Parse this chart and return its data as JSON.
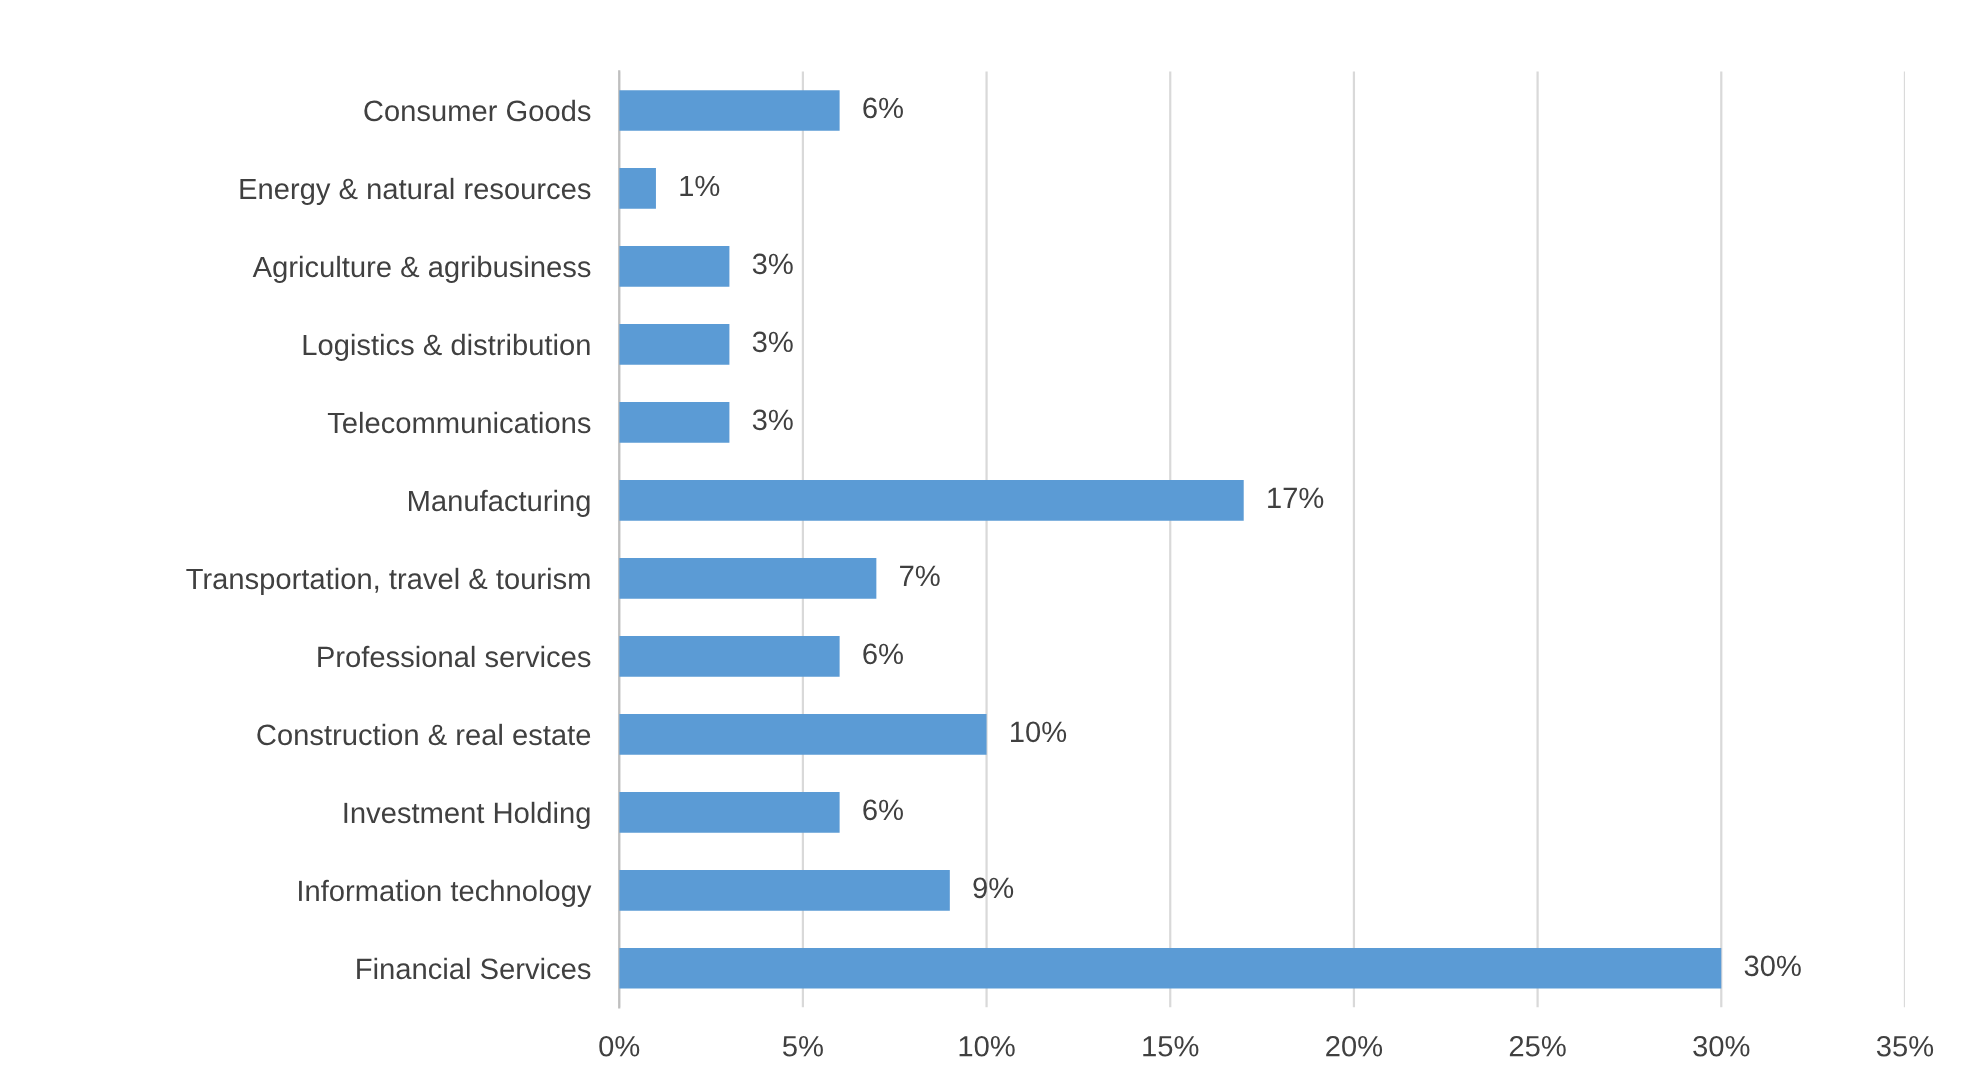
{
  "chart_data": {
    "type": "bar",
    "orientation": "horizontal",
    "categories": [
      "Consumer Goods",
      "Energy & natural resources",
      "Agriculture & agribusiness",
      "Logistics & distribution",
      "Telecommunications",
      "Manufacturing",
      "Transportation, travel & tourism",
      "Professional services",
      "Construction & real estate",
      "Investment Holding",
      "Information technology",
      "Financial Services"
    ],
    "values": [
      6,
      1,
      3,
      3,
      3,
      17,
      7,
      6,
      10,
      6,
      9,
      30
    ],
    "value_labels": [
      "6%",
      "1%",
      "3%",
      "3%",
      "3%",
      "17%",
      "7%",
      "6%",
      "10%",
      "6%",
      "9%",
      "30%"
    ],
    "color": "#5b9bd5",
    "xlim": [
      0,
      35
    ],
    "xticks": [
      {
        "value": 0,
        "label": "0%"
      },
      {
        "value": 5,
        "label": "5%"
      },
      {
        "value": 10,
        "label": "10%"
      },
      {
        "value": 15,
        "label": "15%"
      },
      {
        "value": 20,
        "label": "20%"
      },
      {
        "value": 25,
        "label": "25%"
      },
      {
        "value": 30,
        "label": "30%"
      },
      {
        "value": 35,
        "label": "35%"
      }
    ],
    "grid": "x"
  }
}
